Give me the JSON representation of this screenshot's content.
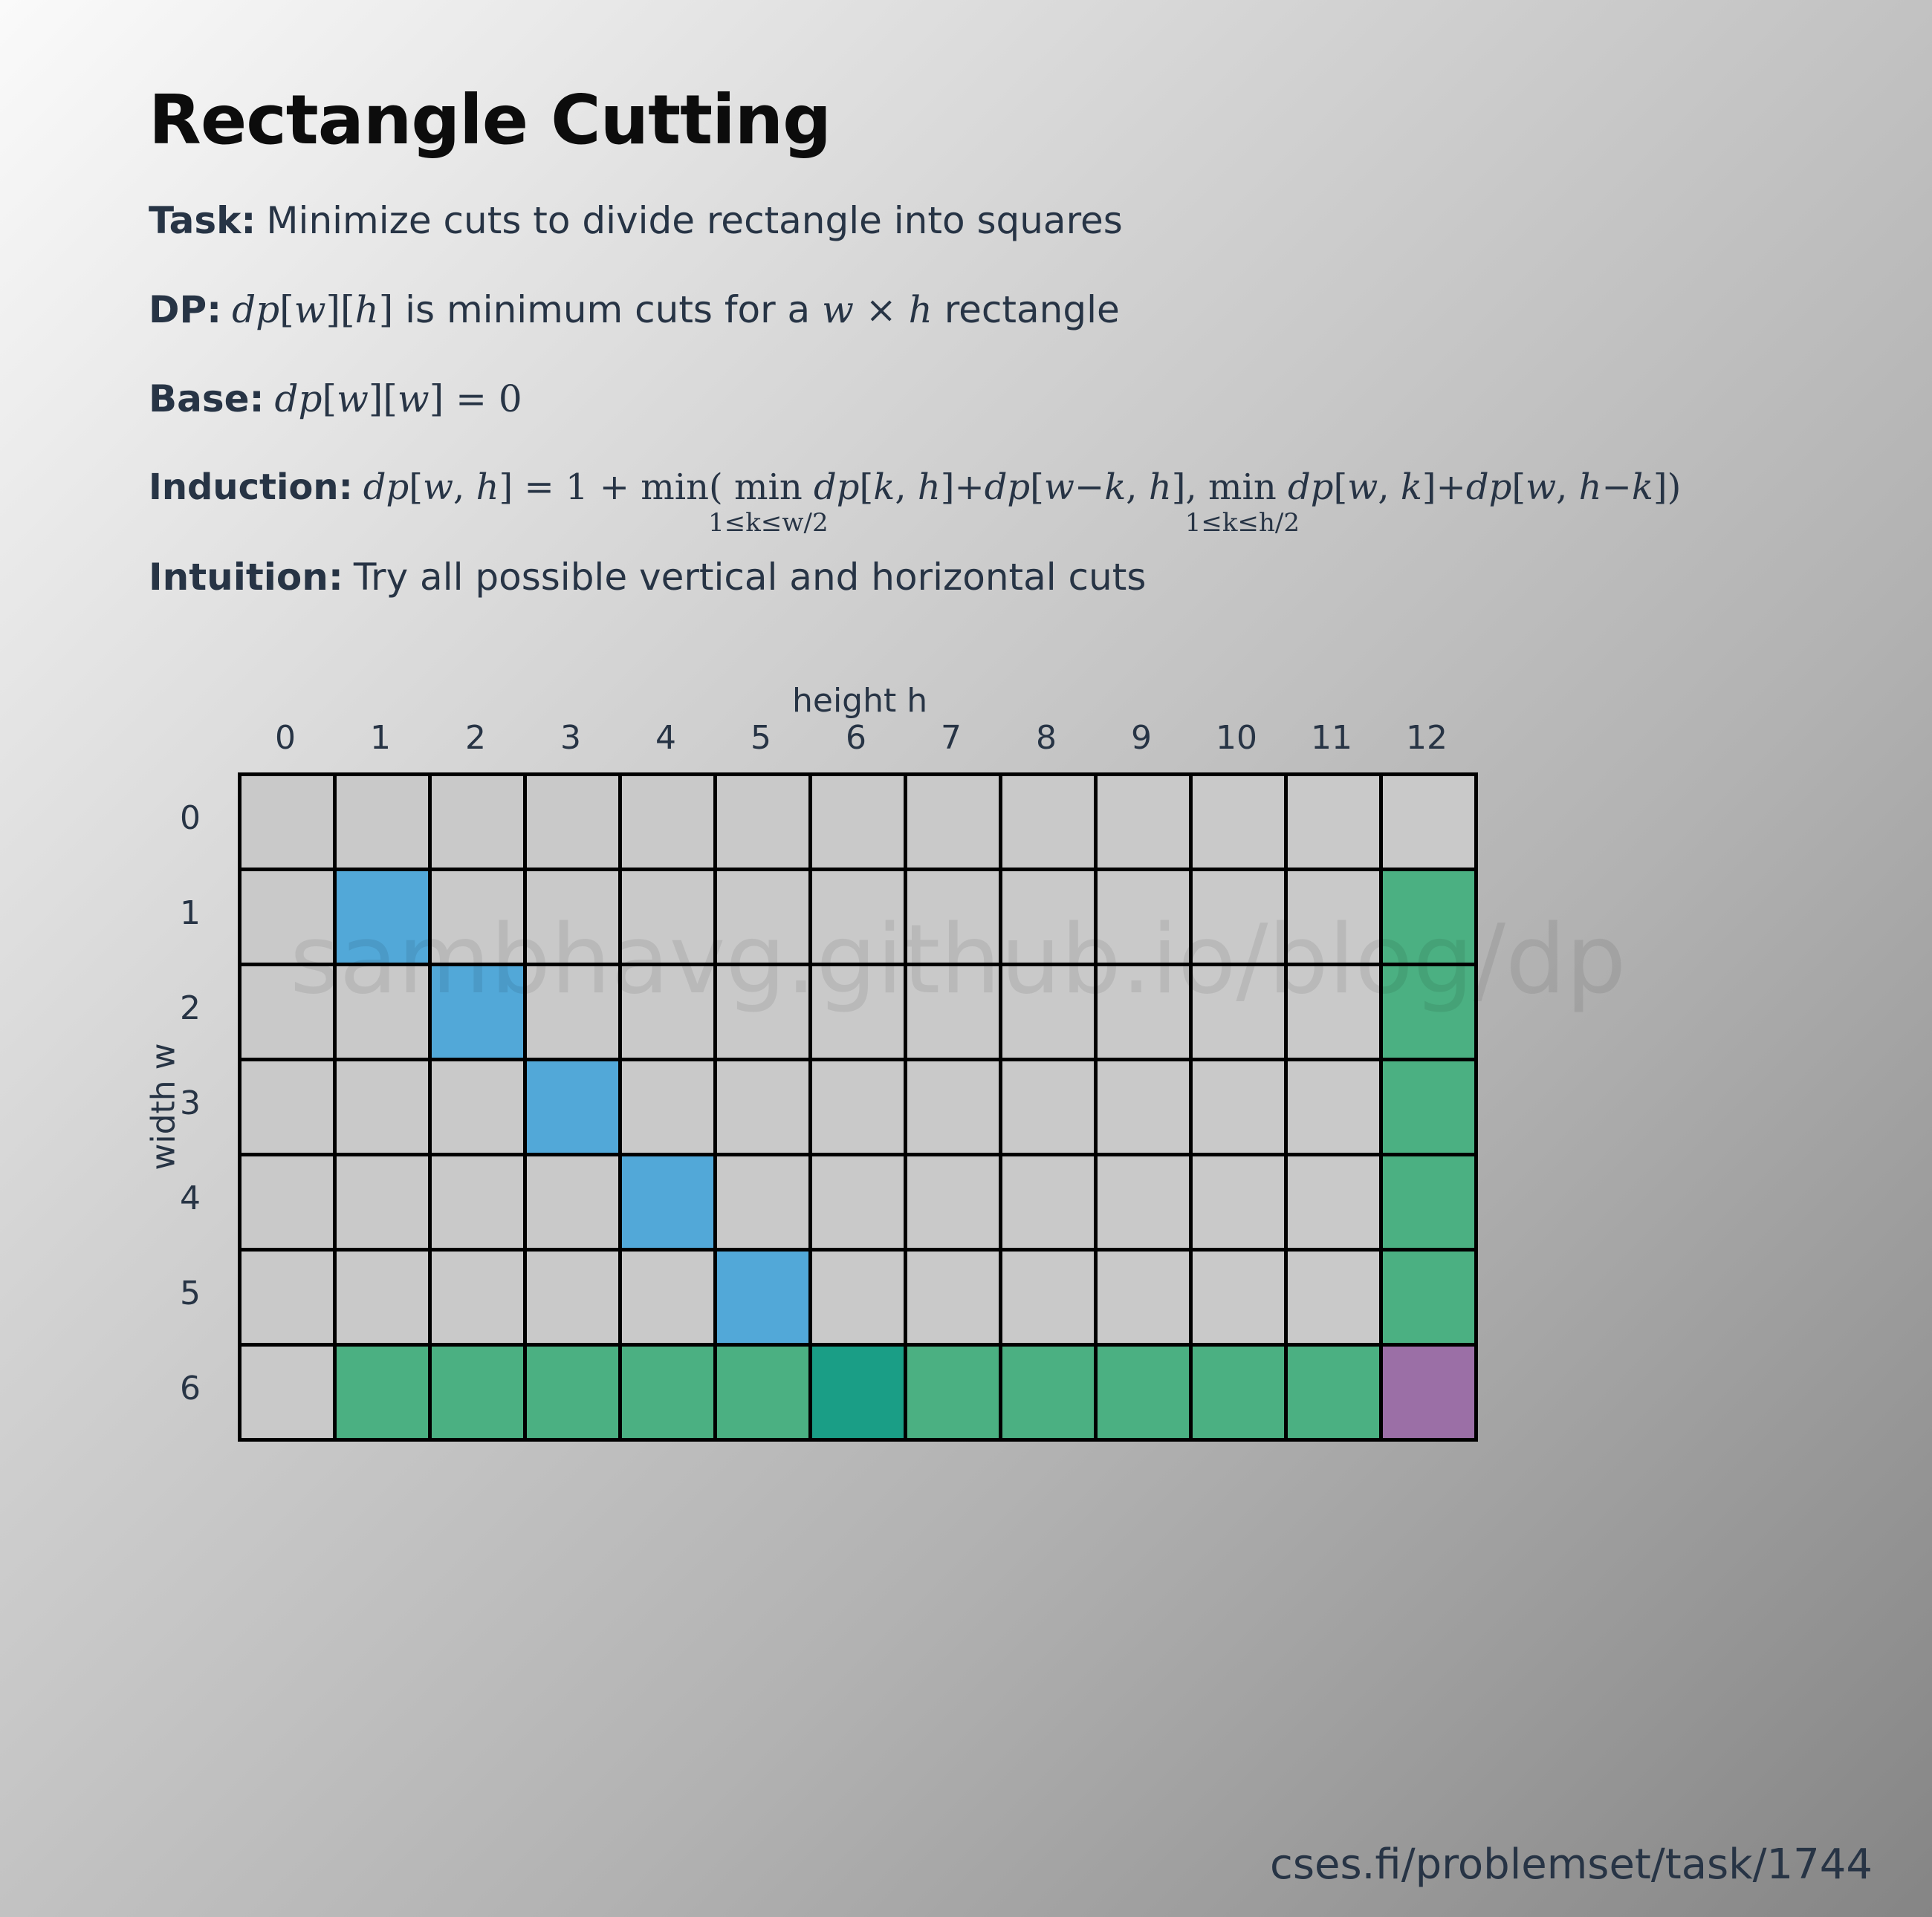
{
  "title": "Rectangle Cutting",
  "task": {
    "label": "Task:",
    "text": "Minimize cuts to divide rectangle into squares"
  },
  "dp": {
    "label": "DP:",
    "text_middle": "is minimum cuts for a",
    "text_end": "rectangle"
  },
  "base": {
    "label": "Base:"
  },
  "induction": {
    "label": "Induction:",
    "sub_w": "1≤k≤w/2",
    "sub_h": "1≤k≤h/2"
  },
  "intuition": {
    "label": "Intuition:",
    "text": "Try all possible vertical and horizontal cuts"
  },
  "grid": {
    "x_axis_title": "height h",
    "y_axis_title": "width w",
    "col_labels": [
      "0",
      "1",
      "2",
      "3",
      "4",
      "5",
      "6",
      "7",
      "8",
      "9",
      "10",
      "11",
      "12"
    ],
    "row_labels": [
      "0",
      "1",
      "2",
      "3",
      "4",
      "5",
      "6"
    ],
    "colors": {
      "default": "#c9c9c9",
      "diagonal": "#52a8d8",
      "dependency": "#4bb082",
      "dependency_strong": "#1a9e86",
      "target": "#9b6fa6",
      "border": "#000000"
    },
    "highlights": {
      "diagonal": [
        [
          1,
          1
        ],
        [
          2,
          2
        ],
        [
          3,
          3
        ],
        [
          4,
          4
        ],
        [
          5,
          5
        ]
      ],
      "dependency_row": 6,
      "dependency_col": 12,
      "dependency_strong": [
        [
          6,
          6
        ]
      ],
      "target": [
        6,
        12
      ]
    }
  },
  "watermark": "sambhavg.github.io/blog/dp",
  "source": "cses.fi/problemset/task/1744"
}
